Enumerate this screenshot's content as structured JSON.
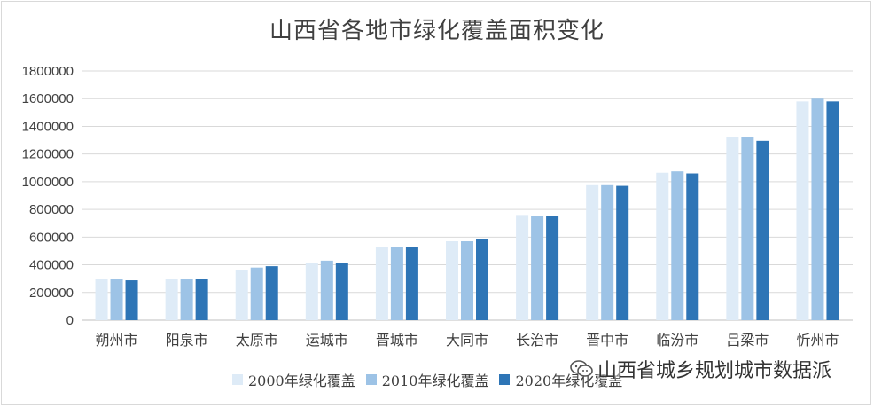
{
  "chart_data": {
    "type": "bar",
    "title": "山西省各地市绿化覆盖面积变化",
    "xlabel": "",
    "ylabel": "",
    "ylim": [
      0,
      1800000
    ],
    "yticks": [
      "0",
      "200000",
      "400000",
      "600000",
      "800000",
      "1000000",
      "1200000",
      "1400000",
      "1600000",
      "1800000"
    ],
    "grid": true,
    "legend_position": "bottom",
    "categories": [
      "朔州市",
      "阳泉市",
      "太原市",
      "运城市",
      "晋城市",
      "大同市",
      "长治市",
      "晋中市",
      "临汾市",
      "吕梁市",
      "忻州市"
    ],
    "series": [
      {
        "name": "2000年绿化覆盖",
        "color": "#deebf7",
        "values": [
          295000,
          295000,
          365000,
          410000,
          530000,
          570000,
          760000,
          975000,
          1065000,
          1320000,
          1580000
        ]
      },
      {
        "name": "2010年绿化覆盖",
        "color": "#9dc3e6",
        "values": [
          300000,
          295000,
          380000,
          430000,
          530000,
          570000,
          755000,
          975000,
          1075000,
          1320000,
          1600000
        ]
      },
      {
        "name": "2020年绿化覆盖",
        "color": "#2e75b6",
        "values": [
          288000,
          295000,
          390000,
          415000,
          530000,
          585000,
          755000,
          970000,
          1060000,
          1295000,
          1580000
        ]
      }
    ]
  },
  "watermark": {
    "text": "山西省城乡规划城市数据派",
    "icon": "wechat-icon"
  }
}
